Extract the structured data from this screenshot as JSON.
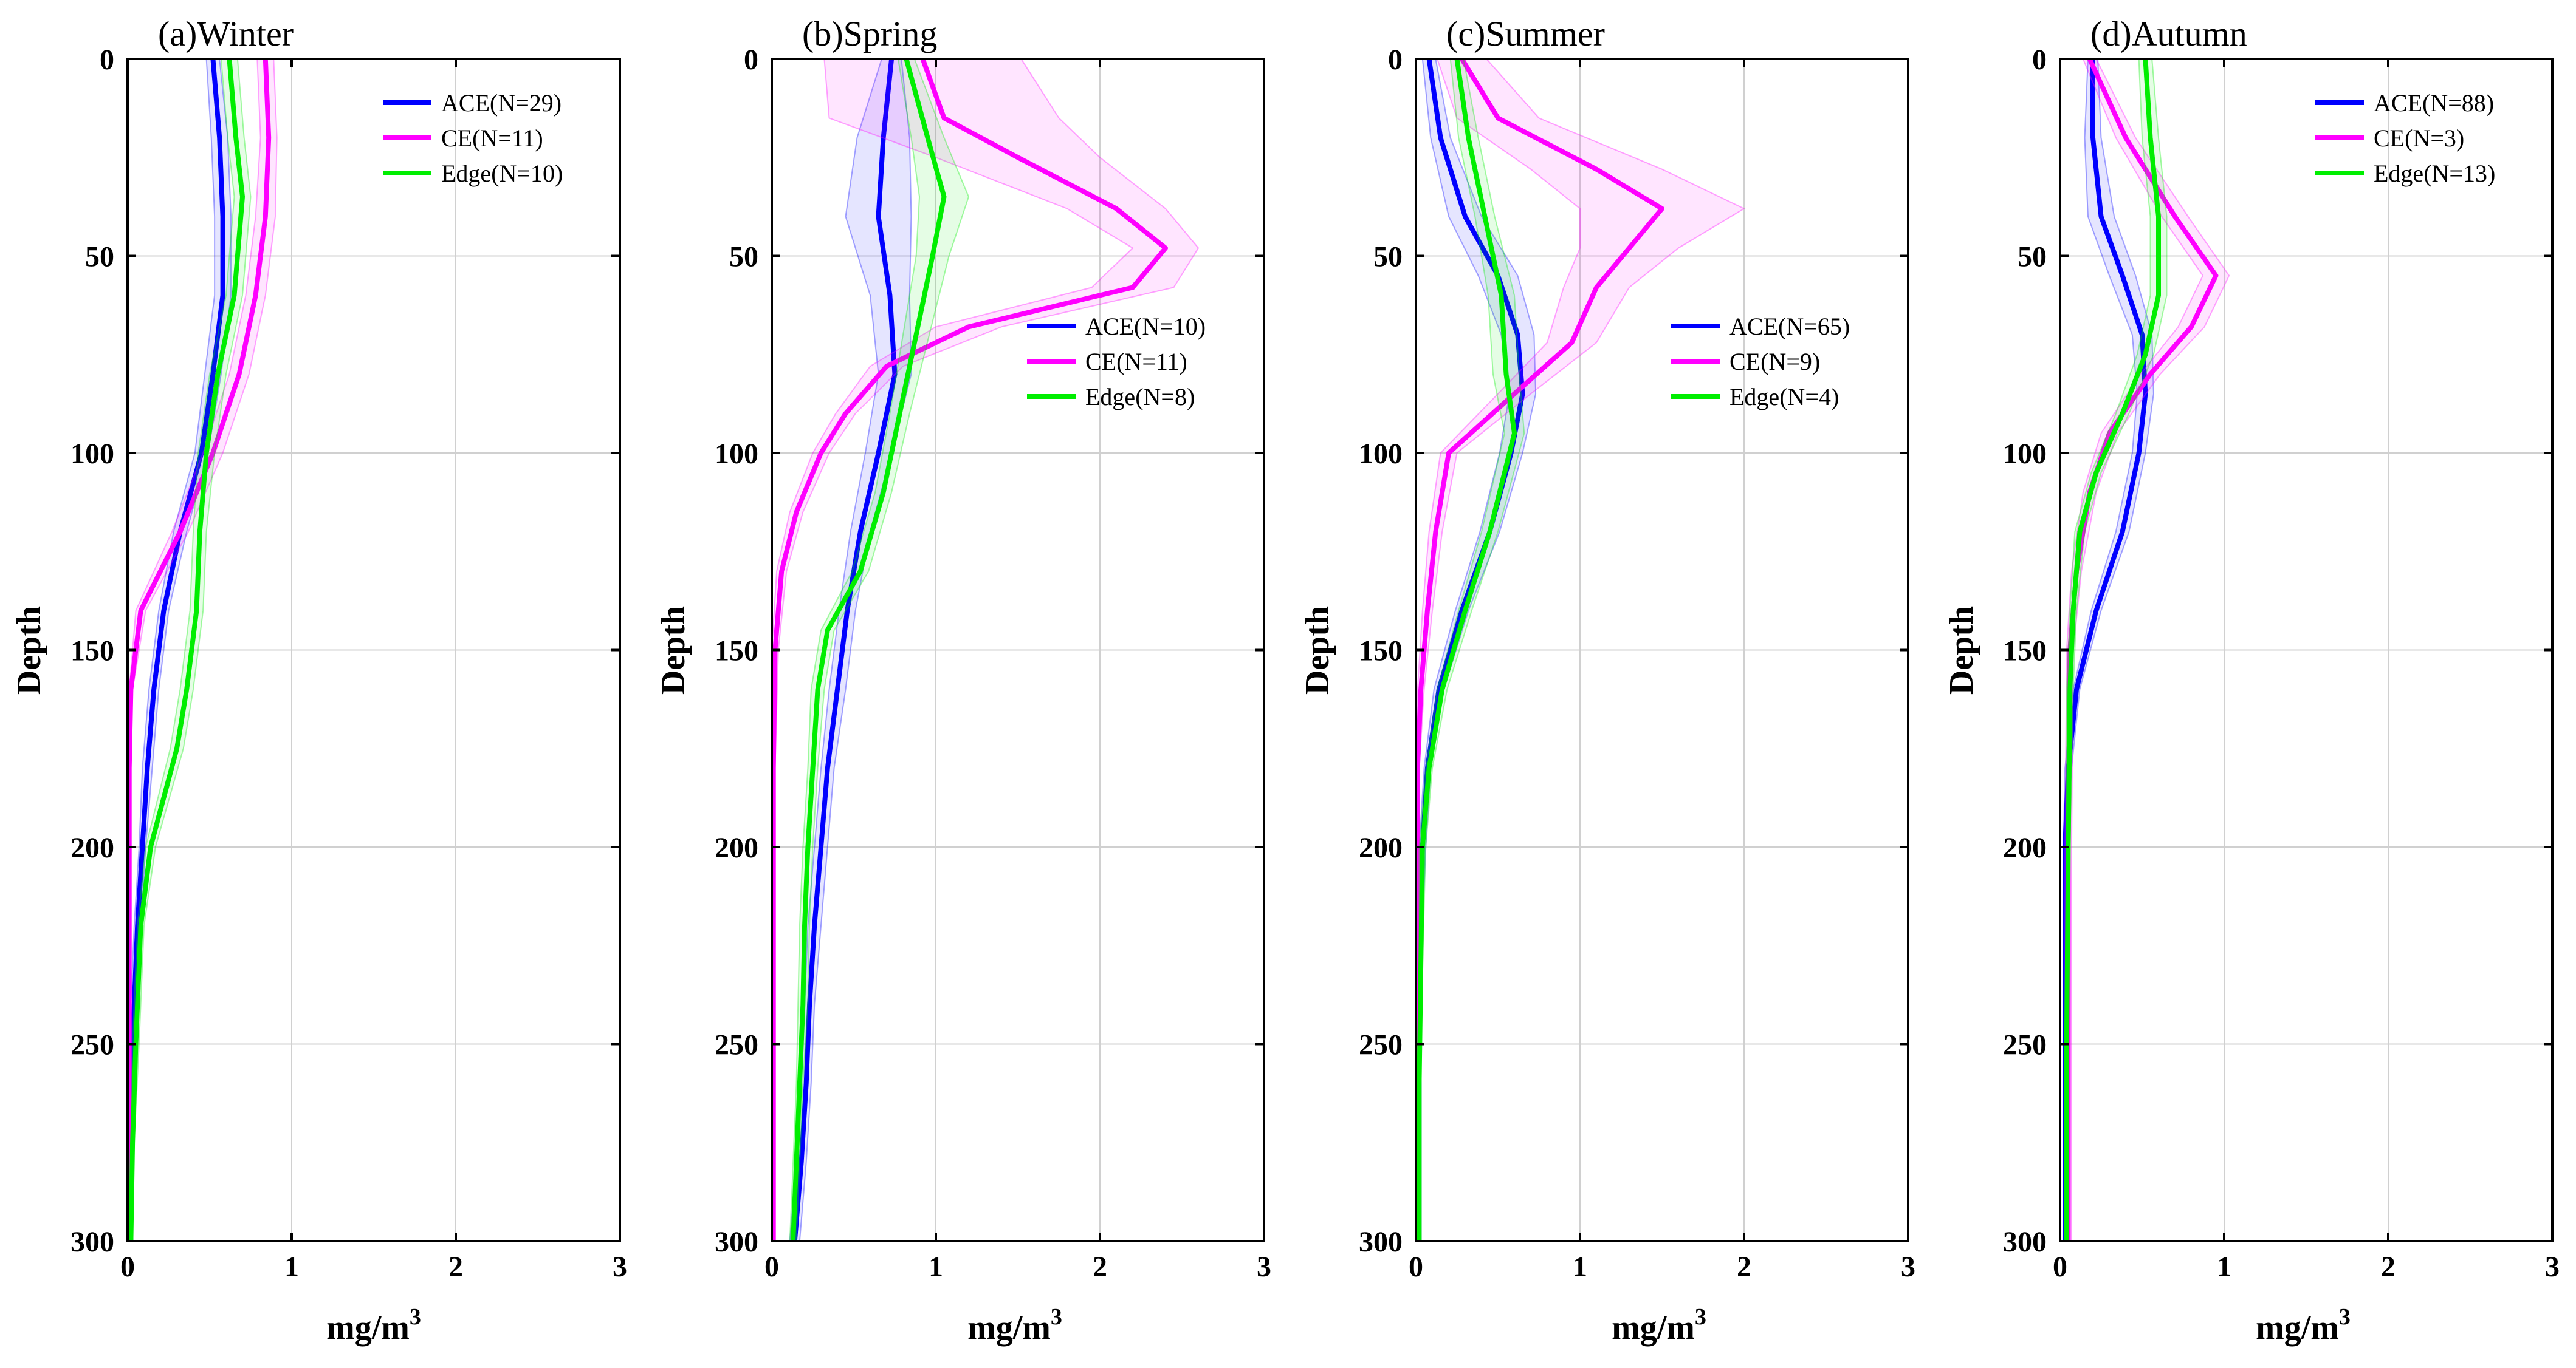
{
  "colors": {
    "ACE": "#0000ff",
    "CE": "#ff00ff",
    "Edge": "#00ee00"
  },
  "chart_data": [
    {
      "type": "line",
      "title": "(a)Winter",
      "xlabel": "mg/m",
      "xlabel_sup": "3",
      "ylabel": "Depth",
      "xlim": [
        0,
        3
      ],
      "ylim": [
        0,
        300
      ],
      "xticks": [
        "0",
        "1",
        "2",
        "3"
      ],
      "yticks": [
        "0",
        "50",
        "100",
        "150",
        "200",
        "250",
        "300"
      ],
      "legend": {
        "location": "top-right"
      },
      "series": [
        {
          "key": "ACE",
          "name": "ACE(N=29)",
          "color": "#0000ff",
          "points": [
            [
              0.52,
              0
            ],
            [
              0.56,
              20
            ],
            [
              0.58,
              40
            ],
            [
              0.58,
              60
            ],
            [
              0.52,
              80
            ],
            [
              0.45,
              100
            ],
            [
              0.32,
              120
            ],
            [
              0.22,
              140
            ],
            [
              0.16,
              160
            ],
            [
              0.12,
              180
            ],
            [
              0.09,
              200
            ],
            [
              0.06,
              220
            ],
            [
              0.04,
              240
            ],
            [
              0.03,
              260
            ],
            [
              0.02,
              280
            ],
            [
              0.02,
              300
            ]
          ],
          "band": [
            0.04,
            0.05,
            0.05,
            0.05,
            0.05,
            0.04,
            0.04,
            0.03,
            0.03,
            0.03,
            0.02,
            0.02,
            0.02,
            0.01,
            0.01,
            0.01
          ]
        },
        {
          "key": "CE",
          "name": "CE(N=11)",
          "color": "#ff00ff",
          "points": [
            [
              0.84,
              0
            ],
            [
              0.86,
              20
            ],
            [
              0.84,
              40
            ],
            [
              0.78,
              60
            ],
            [
              0.68,
              80
            ],
            [
              0.52,
              100
            ],
            [
              0.32,
              120
            ],
            [
              0.08,
              140
            ],
            [
              0.02,
              160
            ],
            [
              0.01,
              180
            ],
            [
              0.01,
              200
            ],
            [
              0.01,
              220
            ],
            [
              0.01,
              240
            ],
            [
              0.01,
              260
            ],
            [
              0.01,
              280
            ],
            [
              0.01,
              300
            ]
          ],
          "band": [
            0.05,
            0.05,
            0.06,
            0.06,
            0.06,
            0.06,
            0.05,
            0.03,
            0.01,
            0.01,
            0.01,
            0.01,
            0.01,
            0.01,
            0.01,
            0.01
          ]
        },
        {
          "key": "Edge",
          "name": "Edge(N=10)",
          "color": "#00ee00",
          "points": [
            [
              0.62,
              0
            ],
            [
              0.66,
              20
            ],
            [
              0.7,
              35
            ],
            [
              0.65,
              60
            ],
            [
              0.55,
              80
            ],
            [
              0.48,
              100
            ],
            [
              0.44,
              120
            ],
            [
              0.42,
              140
            ],
            [
              0.36,
              160
            ],
            [
              0.3,
              175
            ],
            [
              0.14,
              200
            ],
            [
              0.08,
              220
            ],
            [
              0.05,
              250
            ],
            [
              0.03,
              275
            ],
            [
              0.02,
              300
            ]
          ],
          "band": [
            0.05,
            0.05,
            0.05,
            0.05,
            0.05,
            0.05,
            0.04,
            0.04,
            0.04,
            0.04,
            0.03,
            0.02,
            0.02,
            0.01,
            0.01
          ]
        }
      ]
    },
    {
      "type": "line",
      "title": "(b)Spring",
      "xlabel": "mg/m",
      "xlabel_sup": "3",
      "ylabel": "Depth",
      "xlim": [
        0,
        3
      ],
      "ylim": [
        0,
        300
      ],
      "xticks": [
        "0",
        "1",
        "2",
        "3"
      ],
      "yticks": [
        "0",
        "50",
        "100",
        "150",
        "200",
        "250",
        "300"
      ],
      "legend": {
        "location": "right"
      },
      "series": [
        {
          "key": "ACE",
          "name": "ACE(N=10)",
          "color": "#0000ff",
          "points": [
            [
              0.73,
              0
            ],
            [
              0.68,
              20
            ],
            [
              0.65,
              40
            ],
            [
              0.72,
              60
            ],
            [
              0.75,
              80
            ],
            [
              0.65,
              100
            ],
            [
              0.54,
              120
            ],
            [
              0.46,
              140
            ],
            [
              0.4,
              160
            ],
            [
              0.34,
              180
            ],
            [
              0.3,
              200
            ],
            [
              0.26,
              220
            ],
            [
              0.23,
              240
            ],
            [
              0.21,
              260
            ],
            [
              0.18,
              280
            ],
            [
              0.14,
              300
            ]
          ],
          "band": [
            0.06,
            0.16,
            0.2,
            0.12,
            0.1,
            0.08,
            0.06,
            0.05,
            0.05,
            0.04,
            0.04,
            0.04,
            0.03,
            0.03,
            0.03,
            0.03
          ]
        },
        {
          "key": "CE",
          "name": "CE(N=11)",
          "color": "#ff00ff",
          "points": [
            [
              0.92,
              0
            ],
            [
              1.05,
              15
            ],
            [
              1.5,
              25
            ],
            [
              2.1,
              38
            ],
            [
              2.4,
              48
            ],
            [
              2.2,
              58
            ],
            [
              1.2,
              68
            ],
            [
              0.7,
              78
            ],
            [
              0.45,
              90
            ],
            [
              0.3,
              100
            ],
            [
              0.15,
              115
            ],
            [
              0.06,
              130
            ],
            [
              0.02,
              150
            ],
            [
              0.01,
              180
            ],
            [
              0.01,
              220
            ],
            [
              0.01,
              260
            ],
            [
              0.01,
              300
            ]
          ],
          "band": [
            0.6,
            0.7,
            0.5,
            0.3,
            0.2,
            0.25,
            0.2,
            0.1,
            0.06,
            0.05,
            0.04,
            0.03,
            0.02,
            0.01,
            0.01,
            0.01,
            0.01
          ]
        },
        {
          "key": "Edge",
          "name": "Edge(N=8)",
          "color": "#00ee00",
          "points": [
            [
              0.82,
              0
            ],
            [
              0.95,
              20
            ],
            [
              1.05,
              35
            ],
            [
              0.98,
              50
            ],
            [
              0.88,
              70
            ],
            [
              0.78,
              90
            ],
            [
              0.68,
              110
            ],
            [
              0.54,
              130
            ],
            [
              0.34,
              145
            ],
            [
              0.28,
              160
            ],
            [
              0.25,
              180
            ],
            [
              0.22,
              200
            ],
            [
              0.2,
              220
            ],
            [
              0.19,
              240
            ],
            [
              0.17,
              260
            ],
            [
              0.15,
              280
            ],
            [
              0.13,
              300
            ]
          ],
          "band": [
            0.05,
            0.1,
            0.15,
            0.1,
            0.08,
            0.06,
            0.05,
            0.05,
            0.04,
            0.04,
            0.03,
            0.03,
            0.03,
            0.03,
            0.02,
            0.02,
            0.02
          ]
        }
      ]
    },
    {
      "type": "line",
      "title": "(c)Summer",
      "xlabel": "mg/m",
      "xlabel_sup": "3",
      "ylabel": "Depth",
      "xlim": [
        0,
        3
      ],
      "ylim": [
        0,
        300
      ],
      "xticks": [
        "0",
        "1",
        "2",
        "3"
      ],
      "yticks": [
        "0",
        "50",
        "100",
        "150",
        "200",
        "250",
        "300"
      ],
      "legend": {
        "location": "right"
      },
      "series": [
        {
          "key": "ACE",
          "name": "ACE(N=65)",
          "color": "#0000ff",
          "points": [
            [
              0.08,
              0
            ],
            [
              0.15,
              20
            ],
            [
              0.3,
              40
            ],
            [
              0.5,
              55
            ],
            [
              0.62,
              70
            ],
            [
              0.65,
              85
            ],
            [
              0.58,
              100
            ],
            [
              0.45,
              120
            ],
            [
              0.28,
              140
            ],
            [
              0.14,
              160
            ],
            [
              0.07,
              180
            ],
            [
              0.04,
              200
            ],
            [
              0.03,
              220
            ],
            [
              0.02,
              240
            ],
            [
              0.02,
              260
            ],
            [
              0.02,
              280
            ],
            [
              0.02,
              300
            ]
          ],
          "band": [
            0.04,
            0.06,
            0.1,
            0.12,
            0.1,
            0.08,
            0.07,
            0.06,
            0.04,
            0.03,
            0.02,
            0.02,
            0.01,
            0.01,
            0.01,
            0.01,
            0.01
          ]
        },
        {
          "key": "CE",
          "name": "CE(N=9)",
          "color": "#ff00ff",
          "points": [
            [
              0.28,
              0
            ],
            [
              0.5,
              15
            ],
            [
              1.1,
              28
            ],
            [
              1.5,
              38
            ],
            [
              1.3,
              48
            ],
            [
              1.1,
              58
            ],
            [
              0.95,
              72
            ],
            [
              0.6,
              85
            ],
            [
              0.2,
              100
            ],
            [
              0.12,
              120
            ],
            [
              0.07,
              140
            ],
            [
              0.03,
              160
            ],
            [
              0.01,
              180
            ],
            [
              0.01,
              220
            ],
            [
              0.01,
              260
            ],
            [
              0.01,
              300
            ]
          ],
          "band": [
            0.15,
            0.25,
            0.4,
            0.5,
            0.3,
            0.2,
            0.15,
            0.1,
            0.05,
            0.04,
            0.03,
            0.02,
            0.01,
            0.01,
            0.01,
            0.01
          ]
        },
        {
          "key": "Edge",
          "name": "Edge(N=4)",
          "color": "#00ee00",
          "points": [
            [
              0.25,
              0
            ],
            [
              0.32,
              20
            ],
            [
              0.42,
              40
            ],
            [
              0.52,
              60
            ],
            [
              0.55,
              80
            ],
            [
              0.6,
              95
            ],
            [
              0.45,
              120
            ],
            [
              0.3,
              140
            ],
            [
              0.16,
              160
            ],
            [
              0.08,
              180
            ],
            [
              0.04,
              200
            ],
            [
              0.03,
              230
            ],
            [
              0.02,
              260
            ],
            [
              0.02,
              300
            ]
          ],
          "band": [
            0.04,
            0.06,
            0.06,
            0.08,
            0.08,
            0.06,
            0.05,
            0.04,
            0.03,
            0.02,
            0.02,
            0.01,
            0.01,
            0.01
          ]
        }
      ]
    },
    {
      "type": "line",
      "title": "(d)Autumn",
      "xlabel": "mg/m",
      "xlabel_sup": "3",
      "ylabel": "Depth",
      "xlim": [
        0,
        3
      ],
      "ylim": [
        0,
        300
      ],
      "xticks": [
        "0",
        "1",
        "2",
        "3"
      ],
      "yticks": [
        "0",
        "50",
        "100",
        "150",
        "200",
        "250",
        "300"
      ],
      "legend": {
        "location": "top-right"
      },
      "series": [
        {
          "key": "ACE",
          "name": "ACE(N=88)",
          "color": "#0000ff",
          "points": [
            [
              0.2,
              0
            ],
            [
              0.2,
              20
            ],
            [
              0.25,
              40
            ],
            [
              0.38,
              55
            ],
            [
              0.5,
              70
            ],
            [
              0.52,
              85
            ],
            [
              0.48,
              100
            ],
            [
              0.38,
              120
            ],
            [
              0.22,
              140
            ],
            [
              0.1,
              160
            ],
            [
              0.05,
              180
            ],
            [
              0.03,
              200
            ],
            [
              0.03,
              230
            ],
            [
              0.03,
              260
            ],
            [
              0.03,
              300
            ]
          ],
          "band": [
            0.03,
            0.05,
            0.08,
            0.08,
            0.06,
            0.05,
            0.04,
            0.04,
            0.03,
            0.02,
            0.02,
            0.01,
            0.01,
            0.01,
            0.01
          ]
        },
        {
          "key": "CE",
          "name": "CE(N=3)",
          "color": "#ff00ff",
          "points": [
            [
              0.18,
              0
            ],
            [
              0.4,
              20
            ],
            [
              0.7,
              40
            ],
            [
              0.95,
              55
            ],
            [
              0.8,
              68
            ],
            [
              0.55,
              80
            ],
            [
              0.3,
              95
            ],
            [
              0.18,
              110
            ],
            [
              0.1,
              130
            ],
            [
              0.06,
              150
            ],
            [
              0.05,
              200
            ],
            [
              0.05,
              250
            ],
            [
              0.05,
              300
            ]
          ],
          "band": [
            0.04,
            0.06,
            0.08,
            0.08,
            0.08,
            0.06,
            0.05,
            0.04,
            0.03,
            0.02,
            0.02,
            0.02,
            0.02
          ]
        },
        {
          "key": "Edge",
          "name": "Edge(N=13)",
          "color": "#00ee00",
          "points": [
            [
              0.52,
              0
            ],
            [
              0.55,
              20
            ],
            [
              0.6,
              40
            ],
            [
              0.6,
              60
            ],
            [
              0.52,
              75
            ],
            [
              0.38,
              90
            ],
            [
              0.22,
              105
            ],
            [
              0.12,
              120
            ],
            [
              0.08,
              140
            ],
            [
              0.06,
              160
            ],
            [
              0.05,
              200
            ],
            [
              0.04,
              250
            ],
            [
              0.04,
              300
            ]
          ],
          "band": [
            0.04,
            0.05,
            0.05,
            0.05,
            0.05,
            0.04,
            0.03,
            0.03,
            0.02,
            0.02,
            0.01,
            0.01,
            0.01
          ]
        }
      ]
    }
  ]
}
